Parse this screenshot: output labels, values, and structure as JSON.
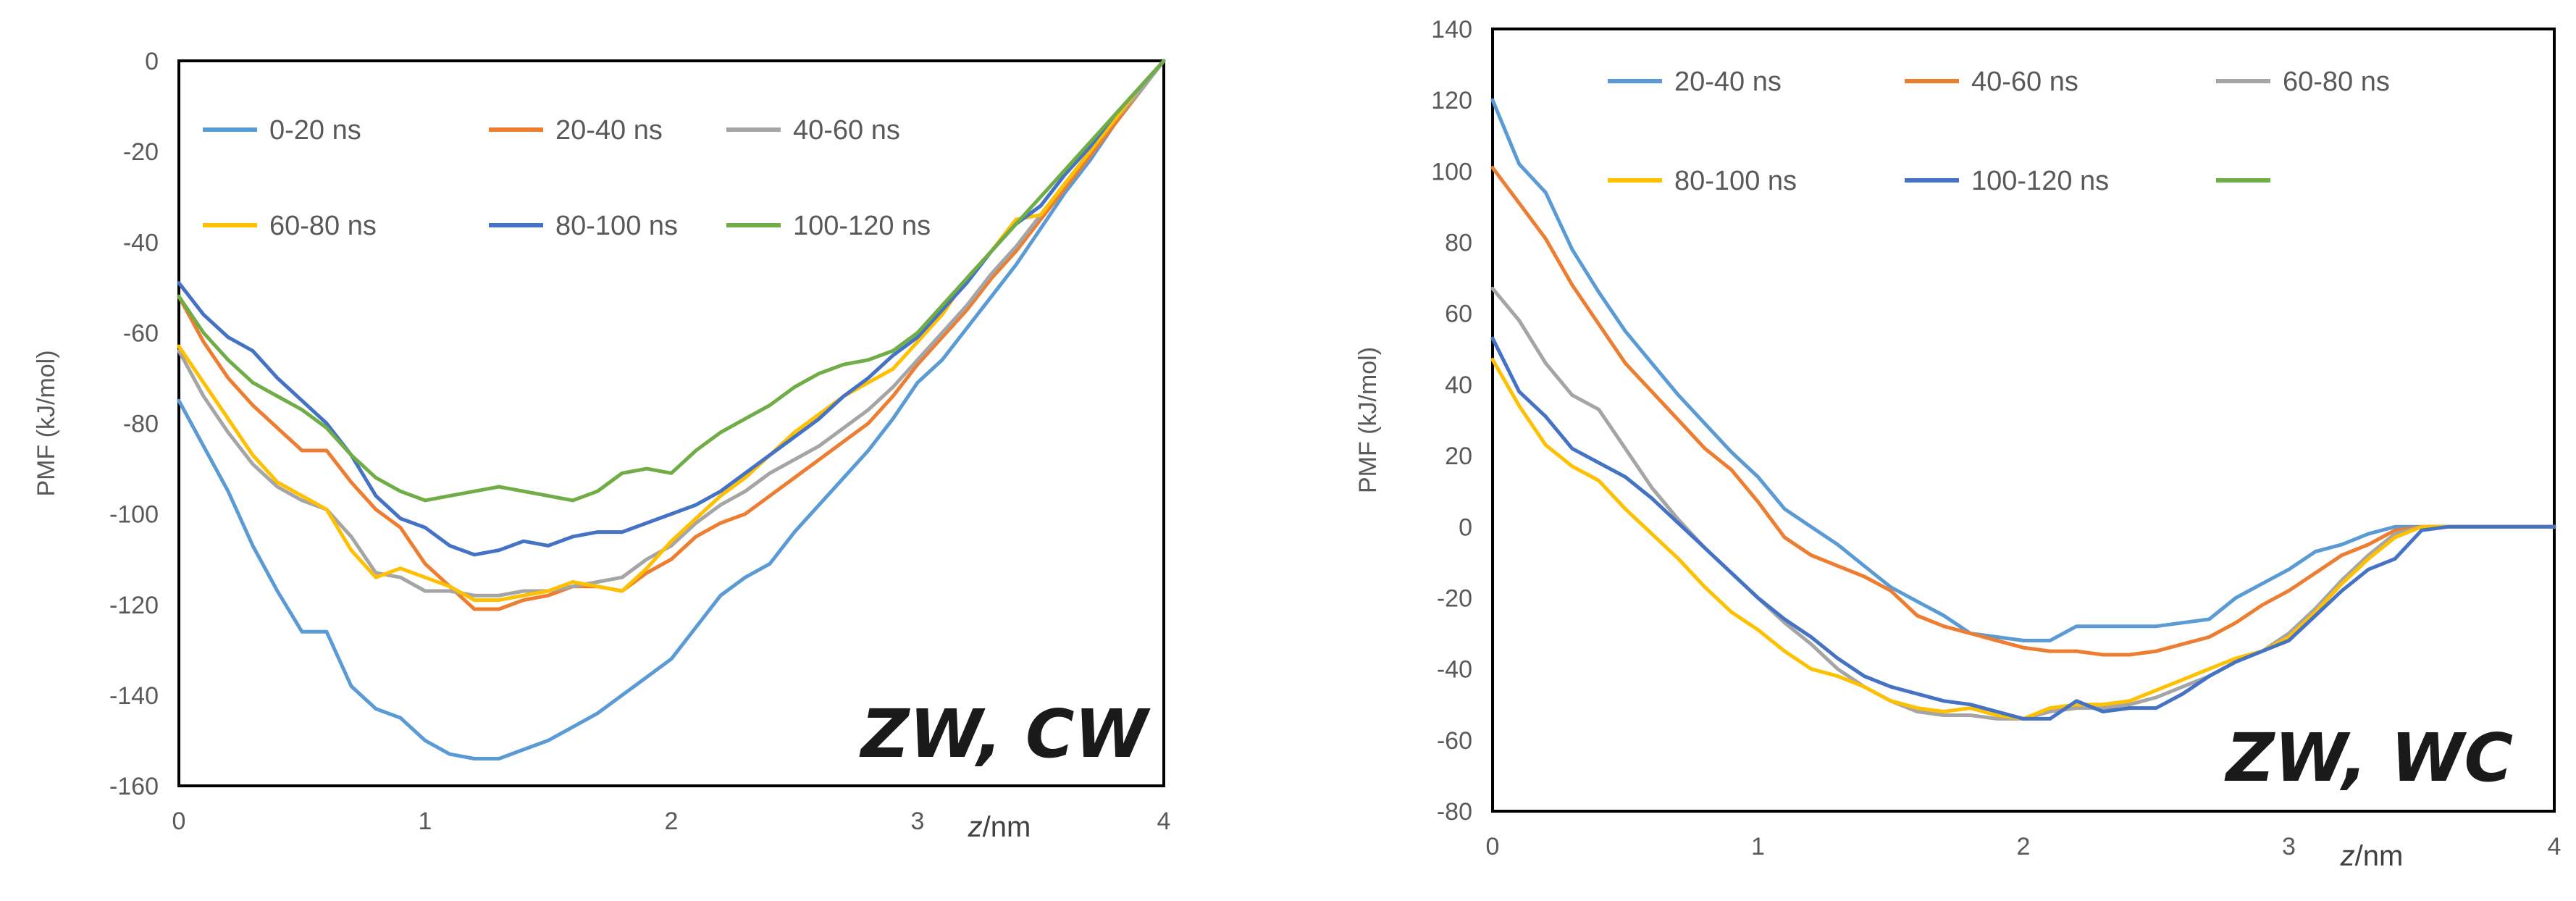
{
  "chart_data": [
    {
      "type": "line",
      "title": "",
      "corner_label": "ZW, CW",
      "xlabel": "z/nm",
      "ylabel": "PMF (kJ/mol)",
      "xlim": [
        0,
        4
      ],
      "ylim": [
        -160,
        0
      ],
      "xticks": [
        0,
        1,
        2,
        3,
        4
      ],
      "yticks": [
        0,
        -20,
        -40,
        -60,
        -80,
        -100,
        -120,
        -140,
        -160
      ],
      "grid": false,
      "legend_position": "top",
      "series": [
        {
          "name": "0-20 ns",
          "color": "#5b9bd5",
          "x": [
            0,
            0.1,
            0.2,
            0.3,
            0.4,
            0.5,
            0.6,
            0.7,
            0.8,
            0.9,
            1.0,
            1.1,
            1.2,
            1.3,
            1.4,
            1.5,
            1.6,
            1.7,
            1.8,
            1.9,
            2.0,
            2.1,
            2.2,
            2.3,
            2.4,
            2.5,
            2.6,
            2.7,
            2.8,
            2.9,
            3.0,
            3.1,
            3.2,
            3.3,
            3.4,
            3.5,
            3.6,
            3.7,
            3.8,
            3.9,
            4.0
          ],
          "y": [
            -75,
            -85,
            -95,
            -107,
            -117,
            -126,
            -126,
            -138,
            -143,
            -145,
            -150,
            -153,
            -154,
            -154,
            -152,
            -150,
            -147,
            -144,
            -140,
            -136,
            -132,
            -125,
            -118,
            -114,
            -111,
            -104,
            -98,
            -92,
            -86,
            -79,
            -71,
            -66,
            -59,
            -52,
            -45,
            -37,
            -29,
            -22,
            -14,
            -7,
            0
          ]
        },
        {
          "name": "20-40 ns",
          "color": "#ed7d31",
          "x": [
            0,
            0.1,
            0.2,
            0.3,
            0.4,
            0.5,
            0.6,
            0.7,
            0.8,
            0.9,
            1.0,
            1.1,
            1.2,
            1.3,
            1.4,
            1.5,
            1.6,
            1.7,
            1.8,
            1.9,
            2.0,
            2.1,
            2.2,
            2.3,
            2.4,
            2.5,
            2.6,
            2.7,
            2.8,
            2.9,
            3.0,
            3.1,
            3.2,
            3.3,
            3.4,
            3.5,
            3.6,
            3.7,
            3.8,
            3.9,
            4.0
          ],
          "y": [
            -52,
            -62,
            -70,
            -76,
            -81,
            -86,
            -86,
            -93,
            -99,
            -103,
            -111,
            -116,
            -121,
            -121,
            -119,
            -118,
            -116,
            -116,
            -117,
            -113,
            -110,
            -105,
            -102,
            -100,
            -96,
            -92,
            -88,
            -84,
            -80,
            -74,
            -67,
            -61,
            -55,
            -48,
            -42,
            -35,
            -28,
            -21,
            -14,
            -7,
            0
          ]
        },
        {
          "name": "40-60 ns",
          "color": "#a5a5a5",
          "x": [
            0,
            0.1,
            0.2,
            0.3,
            0.4,
            0.5,
            0.6,
            0.7,
            0.8,
            0.9,
            1.0,
            1.1,
            1.2,
            1.3,
            1.4,
            1.5,
            1.6,
            1.7,
            1.8,
            1.9,
            2.0,
            2.1,
            2.2,
            2.3,
            2.4,
            2.5,
            2.6,
            2.7,
            2.8,
            2.9,
            3.0,
            3.1,
            3.2,
            3.3,
            3.4,
            3.5,
            3.6,
            3.7,
            3.8,
            3.9,
            4.0
          ],
          "y": [
            -64,
            -74,
            -82,
            -89,
            -94,
            -97,
            -99,
            -105,
            -113,
            -114,
            -117,
            -117,
            -118,
            -118,
            -117,
            -117,
            -116,
            -115,
            -114,
            -110,
            -107,
            -102,
            -98,
            -95,
            -91,
            -88,
            -85,
            -81,
            -77,
            -72,
            -66,
            -60,
            -54,
            -47,
            -41,
            -34,
            -27,
            -20,
            -13,
            -7,
            0
          ]
        },
        {
          "name": "60-80 ns",
          "color": "#ffc000",
          "x": [
            0,
            0.1,
            0.2,
            0.3,
            0.4,
            0.5,
            0.6,
            0.7,
            0.8,
            0.9,
            1.0,
            1.1,
            1.2,
            1.3,
            1.4,
            1.5,
            1.6,
            1.7,
            1.8,
            1.9,
            2.0,
            2.1,
            2.2,
            2.3,
            2.4,
            2.5,
            2.6,
            2.7,
            2.8,
            2.9,
            3.0,
            3.1,
            3.2,
            3.3,
            3.4,
            3.5,
            3.6,
            3.7,
            3.8,
            3.9,
            4.0
          ],
          "y": [
            -63,
            -71,
            -79,
            -87,
            -93,
            -96,
            -99,
            -108,
            -114,
            -112,
            -114,
            -116,
            -119,
            -119,
            -118,
            -117,
            -115,
            -116,
            -117,
            -112,
            -106,
            -101,
            -96,
            -92,
            -87,
            -82,
            -78,
            -74,
            -71,
            -68,
            -62,
            -56,
            -48,
            -42,
            -35,
            -34,
            -27,
            -20,
            -13,
            -6,
            0
          ]
        },
        {
          "name": "80-100 ns",
          "color": "#4472c4",
          "x": [
            0,
            0.1,
            0.2,
            0.3,
            0.4,
            0.5,
            0.6,
            0.7,
            0.8,
            0.9,
            1.0,
            1.1,
            1.2,
            1.3,
            1.4,
            1.5,
            1.6,
            1.7,
            1.8,
            1.9,
            2.0,
            2.1,
            2.2,
            2.3,
            2.4,
            2.5,
            2.6,
            2.7,
            2.8,
            2.9,
            3.0,
            3.1,
            3.2,
            3.3,
            3.4,
            3.5,
            3.6,
            3.7,
            3.8,
            3.9,
            4.0
          ],
          "y": [
            -49,
            -56,
            -61,
            -64,
            -70,
            -75,
            -80,
            -87,
            -96,
            -101,
            -103,
            -107,
            -109,
            -108,
            -106,
            -107,
            -105,
            -104,
            -104,
            -102,
            -100,
            -98,
            -95,
            -91,
            -87,
            -83,
            -79,
            -74,
            -70,
            -65,
            -61,
            -55,
            -49,
            -42,
            -36,
            -32,
            -25,
            -19,
            -12,
            -6,
            0
          ]
        },
        {
          "name": "100-120 ns",
          "color": "#70ad47",
          "x": [
            0,
            0.1,
            0.2,
            0.3,
            0.4,
            0.5,
            0.6,
            0.7,
            0.8,
            0.9,
            1.0,
            1.1,
            1.2,
            1.3,
            1.4,
            1.5,
            1.6,
            1.7,
            1.8,
            1.9,
            2.0,
            2.1,
            2.2,
            2.3,
            2.4,
            2.5,
            2.6,
            2.7,
            2.8,
            2.9,
            3.0,
            3.1,
            3.2,
            3.3,
            3.4,
            3.5,
            3.6,
            3.7,
            3.8,
            3.9,
            4.0
          ],
          "y": [
            -52,
            -60,
            -66,
            -71,
            -74,
            -77,
            -81,
            -87,
            -92,
            -95,
            -97,
            -96,
            -95,
            -94,
            -95,
            -96,
            -97,
            -95,
            -91,
            -90,
            -91,
            -86,
            -82,
            -79,
            -76,
            -72,
            -69,
            -67,
            -66,
            -64,
            -60,
            -54,
            -48,
            -42,
            -36,
            -30,
            -24,
            -18,
            -12,
            -6,
            0
          ]
        }
      ]
    },
    {
      "type": "line",
      "title": "",
      "corner_label": "ZW, WC",
      "xlabel": "z/nm",
      "ylabel": "PMF (kJ/mol)",
      "xlim": [
        0,
        4
      ],
      "ylim": [
        -80,
        140
      ],
      "xticks": [
        0,
        1,
        2,
        3,
        4
      ],
      "yticks": [
        140,
        120,
        100,
        80,
        60,
        40,
        20,
        0,
        -20,
        -40,
        -60,
        -80
      ],
      "grid": false,
      "legend_position": "top",
      "series": [
        {
          "name": "20-40 ns",
          "color": "#5b9bd5",
          "x": [
            0,
            0.1,
            0.2,
            0.3,
            0.4,
            0.5,
            0.6,
            0.7,
            0.8,
            0.9,
            1.0,
            1.1,
            1.2,
            1.3,
            1.4,
            1.5,
            1.6,
            1.7,
            1.8,
            1.9,
            2.0,
            2.1,
            2.2,
            2.3,
            2.4,
            2.5,
            2.6,
            2.7,
            2.8,
            2.9,
            3.0,
            3.1,
            3.2,
            3.3,
            3.4,
            3.5,
            3.6,
            3.7,
            3.8,
            3.9,
            4.0
          ],
          "y": [
            120,
            102,
            94,
            78,
            66,
            55,
            46,
            37,
            29,
            21,
            14,
            5,
            0,
            -5,
            -11,
            -17,
            -21,
            -25,
            -30,
            -31,
            -32,
            -32,
            -28,
            -28,
            -28,
            -28,
            -27,
            -26,
            -20,
            -16,
            -12,
            -7,
            -5,
            -2,
            0,
            0,
            0,
            0,
            0,
            0,
            0
          ]
        },
        {
          "name": "40-60 ns",
          "color": "#ed7d31",
          "x": [
            0,
            0.1,
            0.2,
            0.3,
            0.4,
            0.5,
            0.6,
            0.7,
            0.8,
            0.9,
            1.0,
            1.1,
            1.2,
            1.3,
            1.4,
            1.5,
            1.6,
            1.7,
            1.8,
            1.9,
            2.0,
            2.1,
            2.2,
            2.3,
            2.4,
            2.5,
            2.6,
            2.7,
            2.8,
            2.9,
            3.0,
            3.1,
            3.2,
            3.3,
            3.4,
            3.5,
            3.6,
            3.7,
            3.8,
            3.9,
            4.0
          ],
          "y": [
            101,
            91,
            81,
            68,
            57,
            46,
            38,
            30,
            22,
            16,
            7,
            -3,
            -8,
            -11,
            -14,
            -18,
            -25,
            -28,
            -30,
            -32,
            -34,
            -35,
            -35,
            -36,
            -36,
            -35,
            -33,
            -31,
            -27,
            -22,
            -18,
            -13,
            -8,
            -5,
            -1,
            0,
            0,
            0,
            0,
            0,
            0
          ]
        },
        {
          "name": "60-80 ns",
          "color": "#a5a5a5",
          "x": [
            0,
            0.1,
            0.2,
            0.3,
            0.4,
            0.5,
            0.6,
            0.7,
            0.8,
            0.9,
            1.0,
            1.1,
            1.2,
            1.3,
            1.4,
            1.5,
            1.6,
            1.7,
            1.8,
            1.9,
            2.0,
            2.1,
            2.2,
            2.3,
            2.4,
            2.5,
            2.6,
            2.7,
            2.8,
            2.9,
            3.0,
            3.1,
            3.2,
            3.3,
            3.4,
            3.5,
            3.6,
            3.7,
            3.8,
            3.9,
            4.0
          ],
          "y": [
            67,
            58,
            46,
            37,
            33,
            22,
            11,
            2,
            -6,
            -13,
            -20,
            -27,
            -33,
            -40,
            -45,
            -49,
            -52,
            -53,
            -53,
            -54,
            -54,
            -52,
            -51,
            -51,
            -50,
            -48,
            -45,
            -42,
            -38,
            -35,
            -30,
            -23,
            -15,
            -8,
            -2,
            0,
            0,
            0,
            0,
            0,
            0
          ]
        },
        {
          "name": "80-100 ns",
          "color": "#ffc000",
          "x": [
            0,
            0.1,
            0.2,
            0.3,
            0.4,
            0.5,
            0.6,
            0.7,
            0.8,
            0.9,
            1.0,
            1.1,
            1.2,
            1.3,
            1.4,
            1.5,
            1.6,
            1.7,
            1.8,
            1.9,
            2.0,
            2.1,
            2.2,
            2.3,
            2.4,
            2.5,
            2.6,
            2.7,
            2.8,
            2.9,
            3.0,
            3.1,
            3.2,
            3.3,
            3.4,
            3.5,
            3.6,
            3.7,
            3.8,
            3.9,
            4.0
          ],
          "y": [
            47,
            34,
            23,
            17,
            13,
            5,
            -2,
            -9,
            -17,
            -24,
            -29,
            -35,
            -40,
            -42,
            -45,
            -49,
            -51,
            -52,
            -51,
            -53,
            -54,
            -51,
            -50,
            -50,
            -49,
            -46,
            -43,
            -40,
            -37,
            -35,
            -31,
            -24,
            -16,
            -9,
            -3,
            0,
            0,
            0,
            0,
            0,
            0
          ]
        },
        {
          "name": "100-120 ns",
          "color": "#4472c4",
          "x": [
            0,
            0.1,
            0.2,
            0.3,
            0.4,
            0.5,
            0.6,
            0.7,
            0.8,
            0.9,
            1.0,
            1.1,
            1.2,
            1.3,
            1.4,
            1.5,
            1.6,
            1.7,
            1.8,
            1.9,
            2.0,
            2.1,
            2.2,
            2.3,
            2.4,
            2.5,
            2.6,
            2.7,
            2.8,
            2.9,
            3.0,
            3.1,
            3.2,
            3.3,
            3.4,
            3.5,
            3.6,
            3.7,
            3.8,
            3.9,
            4.0
          ],
          "y": [
            53,
            38,
            31,
            22,
            18,
            14,
            8,
            1,
            -6,
            -13,
            -20,
            -26,
            -31,
            -37,
            -42,
            -45,
            -47,
            -49,
            -50,
            -52,
            -54,
            -54,
            -49,
            -52,
            -51,
            -51,
            -47,
            -42,
            -38,
            -35,
            -32,
            -25,
            -18,
            -12,
            -9,
            -1,
            0,
            0,
            0,
            0,
            0
          ]
        },
        {
          "name": "",
          "color": "#70ad47",
          "x": [],
          "y": []
        }
      ]
    }
  ]
}
